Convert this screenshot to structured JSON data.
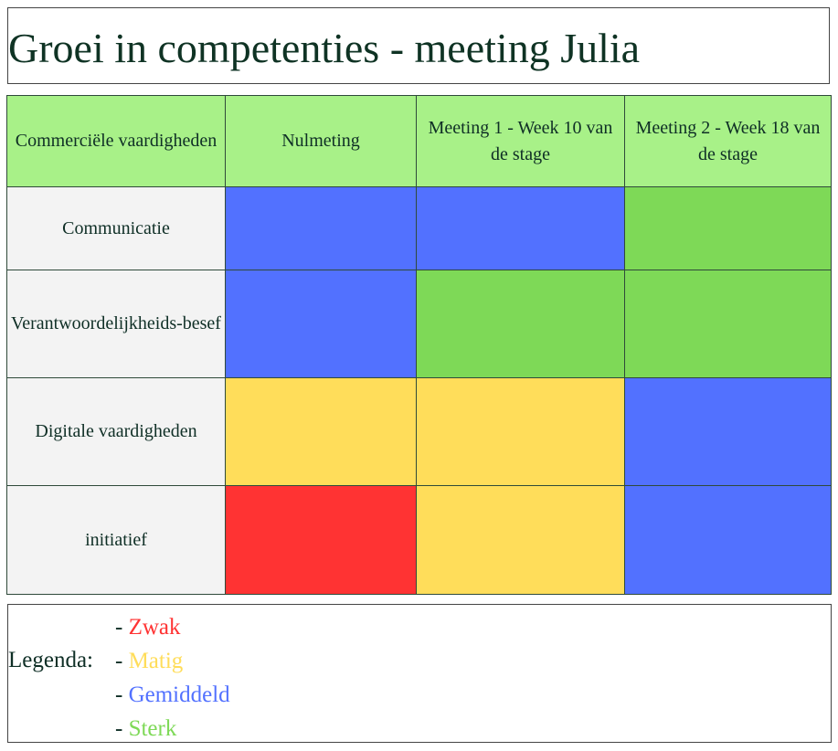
{
  "title": "Groei in competenties - meeting Julia",
  "table": {
    "headers": [
      "Commerciële vaardigheden",
      "Nulmeting",
      "Meeting 1 - Week 10 van de stage",
      "Meeting 2 - Week 18 van de stage"
    ],
    "rows": [
      {
        "label": "Communicatie",
        "levels": [
          "Gemiddeld",
          "Gemiddeld",
          "Sterk"
        ]
      },
      {
        "label": "Verantwoordelijkheids-besef",
        "levels": [
          "Gemiddeld",
          "Sterk",
          "Sterk"
        ]
      },
      {
        "label": "Digitale vaardigheden",
        "levels": [
          "Matig",
          "Matig",
          "Gemiddeld"
        ]
      },
      {
        "label": "initiatief",
        "levels": [
          "Zwak",
          "Matig",
          "Gemiddeld"
        ]
      }
    ]
  },
  "legend": {
    "label": "Legenda:",
    "dash": "-",
    "items": [
      {
        "name": "Zwak",
        "color": "#ff3333"
      },
      {
        "name": "Matig",
        "color": "#ffdd5a"
      },
      {
        "name": "Gemiddeld",
        "color": "#5271ff"
      },
      {
        "name": "Sterk",
        "color": "#7ed957"
      }
    ]
  },
  "colors": {
    "header_bg": "#a8f188",
    "row_label_bg": "#f3f3f3",
    "text": "#0f2f26"
  }
}
